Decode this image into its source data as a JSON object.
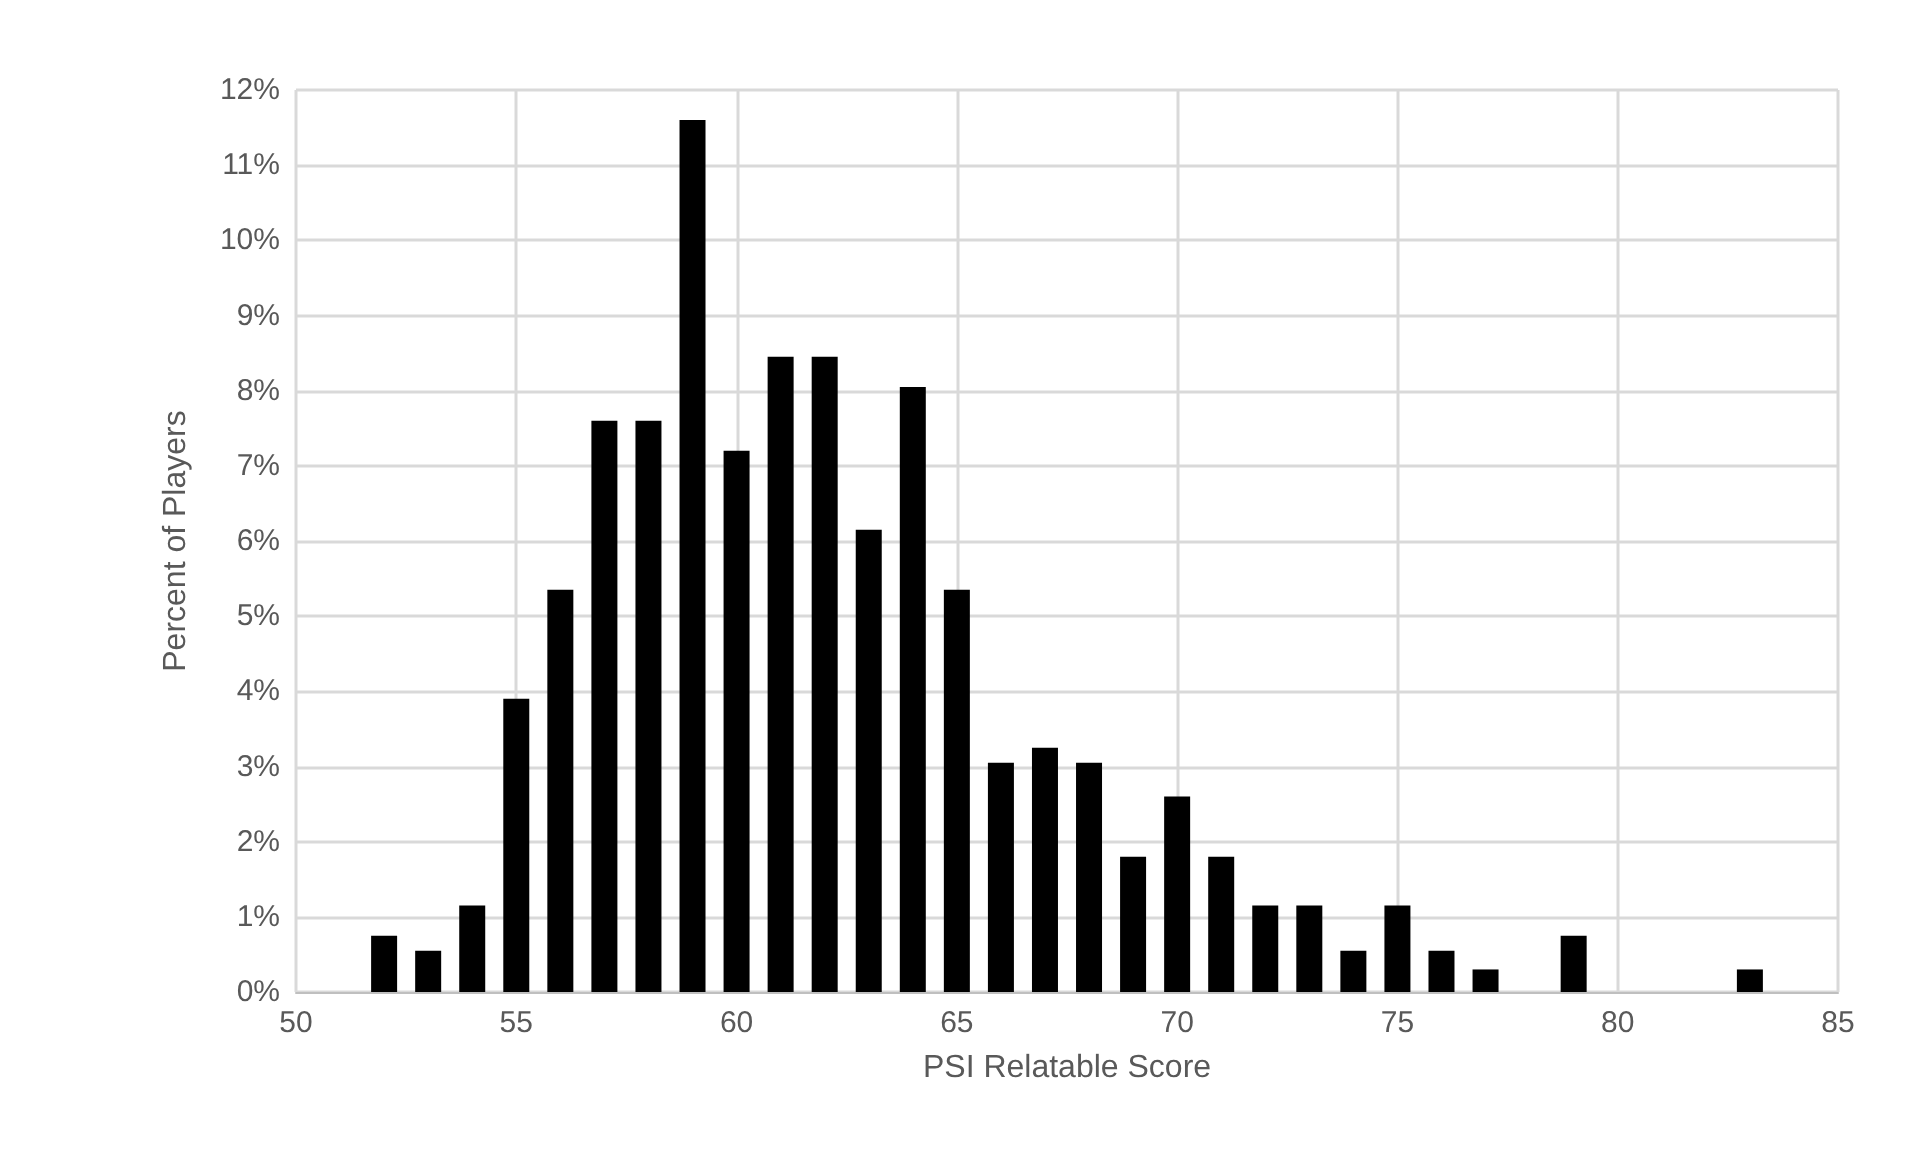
{
  "chart_data": {
    "type": "bar",
    "xlabel": "PSI Relatable Score",
    "ylabel": "Percent of Players",
    "x": [
      52,
      53,
      54,
      55,
      56,
      57,
      58,
      59,
      60,
      61,
      62,
      63,
      64,
      65,
      66,
      67,
      68,
      69,
      70,
      71,
      72,
      73,
      74,
      75,
      76,
      77,
      79,
      83
    ],
    "values": [
      0.75,
      0.55,
      1.15,
      3.9,
      5.35,
      7.6,
      7.6,
      11.6,
      7.2,
      8.45,
      8.45,
      6.15,
      8.05,
      5.35,
      3.05,
      3.25,
      3.05,
      1.8,
      2.6,
      1.8,
      1.15,
      1.15,
      0.55,
      1.15,
      0.55,
      0.3,
      0.75,
      0.3
    ],
    "color": "#000000",
    "xlim": [
      50,
      85
    ],
    "xticks": [
      50,
      55,
      60,
      65,
      70,
      75,
      80,
      85
    ],
    "ylim": [
      0,
      12
    ],
    "yticks": [
      {
        "value": 0,
        "label": "0%"
      },
      {
        "value": 1,
        "label": "1%"
      },
      {
        "value": 2,
        "label": "2%"
      },
      {
        "value": 3,
        "label": "3%"
      },
      {
        "value": 4,
        "label": "4%"
      },
      {
        "value": 5,
        "label": "5%"
      },
      {
        "value": 6,
        "label": "6%"
      },
      {
        "value": 7,
        "label": "7%"
      },
      {
        "value": 8,
        "label": "8%"
      },
      {
        "value": 9,
        "label": "9%"
      },
      {
        "value": 10,
        "label": "10%"
      },
      {
        "value": 11,
        "label": "11%"
      },
      {
        "value": 12,
        "label": "12%"
      }
    ],
    "grid": true
  }
}
